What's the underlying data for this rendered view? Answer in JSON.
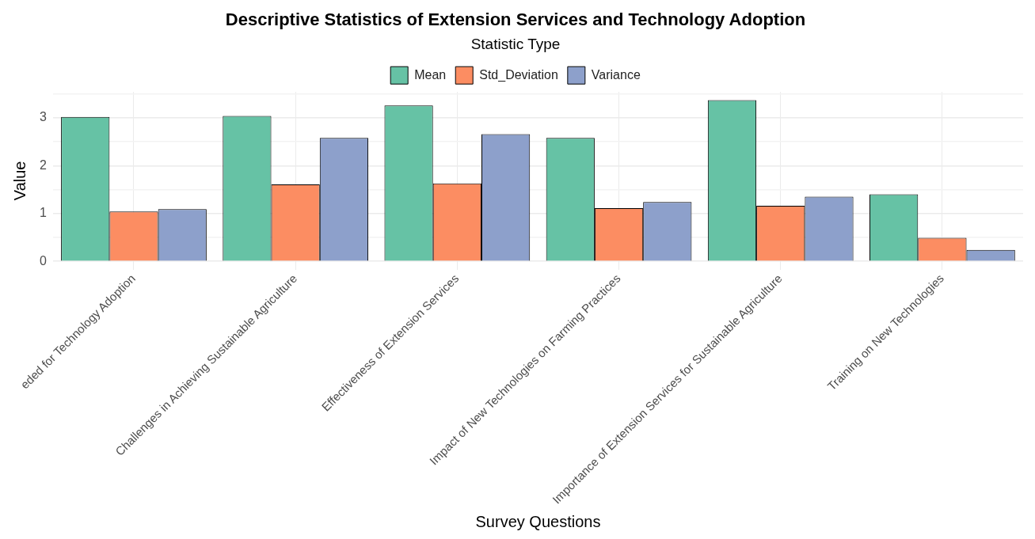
{
  "chart_data": {
    "type": "bar",
    "title": "Descriptive Statistics of Extension Services and Technology Adoption",
    "xlabel": "Survey Questions",
    "ylabel": "Value",
    "legend_title": "Statistic Type",
    "legend": "top",
    "grid": true,
    "categories": [
      "eded for Technology Adoption",
      "Challenges in Achieving Sustainable Agriculture",
      "Effectiveness of Extension Services",
      "Impact of New Technologies on Farming Practices",
      "Importance of Extension Services for Sustainable Agriculture",
      "Training on New Technologies"
    ],
    "series": [
      {
        "name": "Mean",
        "color": "#66c2a5",
        "values": [
          3.02,
          3.04,
          3.26,
          2.58,
          3.37,
          1.4
        ]
      },
      {
        "name": "Std_Deviation",
        "color": "#fc8d62",
        "values": [
          1.04,
          1.61,
          1.63,
          1.11,
          1.16,
          0.49
        ]
      },
      {
        "name": "Variance",
        "color": "#8da0cb",
        "values": [
          1.09,
          2.58,
          2.66,
          1.24,
          1.35,
          0.24
        ]
      }
    ],
    "ylim": [
      -0.17,
      3.54
    ],
    "yticks": [
      0,
      {
        "value": 0.5,
        "label": null
      },
      1,
      {
        "value": 1.5,
        "label": null
      },
      2,
      {
        "value": 2.5,
        "label": null
      },
      3,
      {
        "value": 3.5,
        "label": null
      }
    ]
  }
}
